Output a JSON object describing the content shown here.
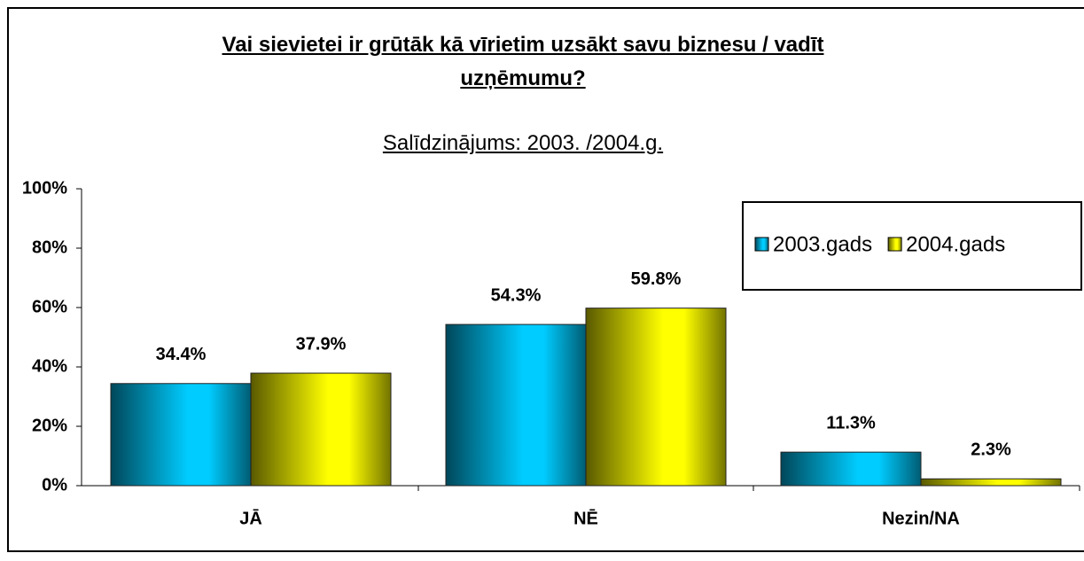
{
  "chart_data": {
    "type": "bar",
    "title": "Vai sievietei ir grūtāk kā vīrietim uzsākt savu biznesu / vadīt uzņēmumu?",
    "subtitle": "Salīdzinājums: 2003. /2004.g.",
    "categories": [
      "JĀ",
      "NĒ",
      "Nezin/NA"
    ],
    "series": [
      {
        "name": "2003.gads",
        "color": "#00ccff",
        "values": [
          34.4,
          54.3,
          11.3
        ],
        "value_labels": [
          "34.4%",
          "54.3%",
          "11.3%"
        ]
      },
      {
        "name": "2004.gads",
        "color": "#ffff00",
        "values": [
          37.9,
          59.8,
          2.3
        ],
        "value_labels": [
          "37.9%",
          "59.8%",
          "2.3%"
        ]
      }
    ],
    "ylim": [
      0,
      100
    ],
    "yticks": [
      {
        "value": 0,
        "label": "0%"
      },
      {
        "value": 20,
        "label": "20%"
      },
      {
        "value": 40,
        "label": "40%"
      },
      {
        "value": 60,
        "label": "60%"
      },
      {
        "value": 80,
        "label": "80%"
      },
      {
        "value": 100,
        "label": "100%"
      }
    ],
    "grid": false,
    "legend": "top-right"
  }
}
